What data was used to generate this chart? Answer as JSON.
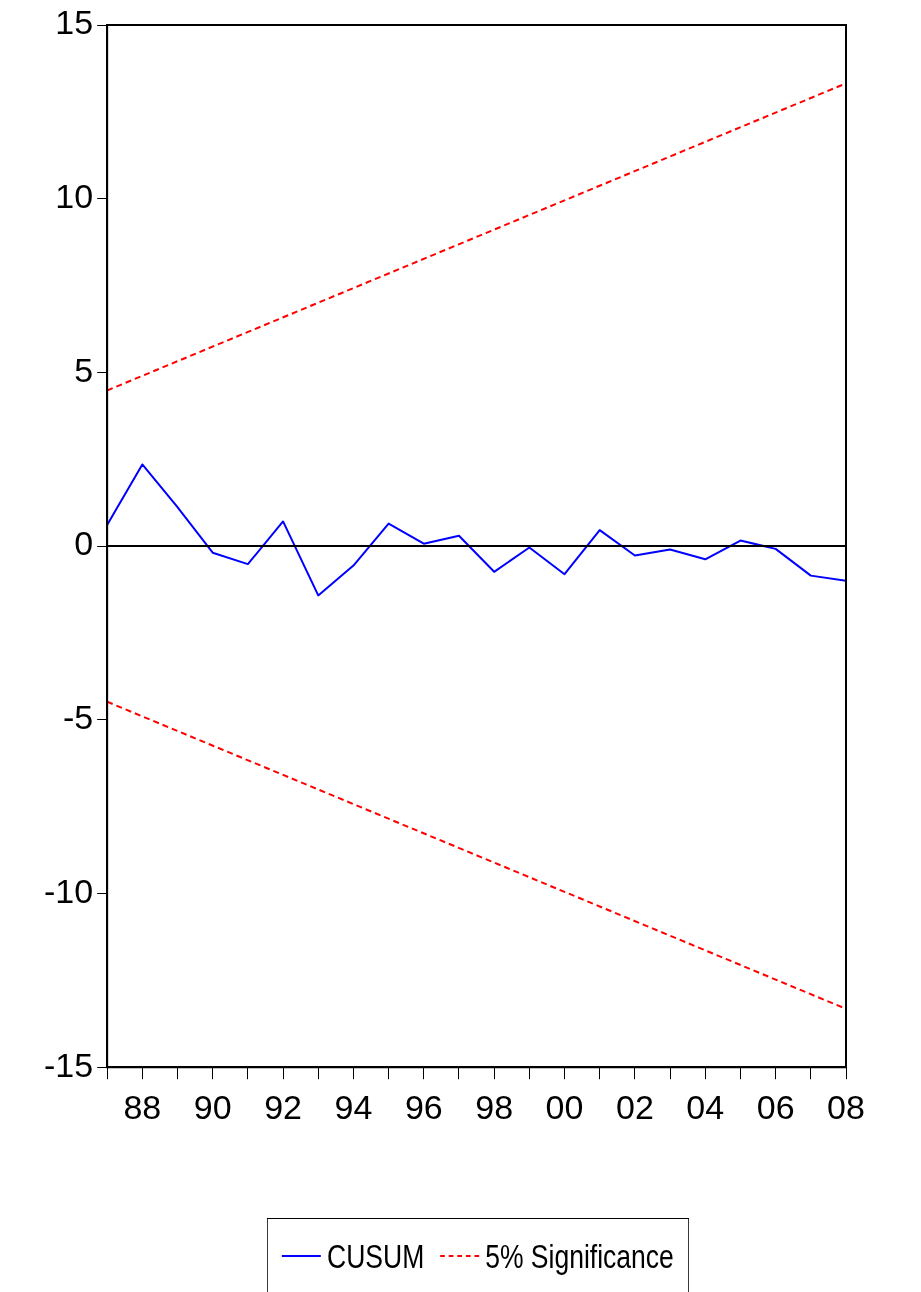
{
  "chart_data": {
    "type": "line",
    "x": [
      1987,
      1988,
      1989,
      1990,
      1991,
      1992,
      1993,
      1994,
      1995,
      1996,
      1997,
      1998,
      1999,
      2000,
      2001,
      2002,
      2003,
      2004,
      2005,
      2006,
      2007,
      2008
    ],
    "series": [
      {
        "name": "CUSUM",
        "color": "#0000ff",
        "line_style": "solid",
        "values": [
          0.61,
          2.35,
          1.12,
          -0.19,
          -0.52,
          0.71,
          -1.42,
          -0.56,
          0.65,
          0.07,
          0.3,
          -0.74,
          -0.04,
          -0.81,
          0.46,
          -0.27,
          -0.1,
          -0.38,
          0.16,
          -0.08,
          -0.85,
          -1.0
        ]
      },
      {
        "name": "5% Significance",
        "color": "#ff0000",
        "line_style": "dashed",
        "values": [
          4.48,
          null,
          null,
          null,
          null,
          null,
          null,
          null,
          null,
          null,
          null,
          null,
          null,
          null,
          null,
          null,
          null,
          null,
          null,
          null,
          null,
          13.32
        ]
      },
      {
        "color": "#ff0000",
        "line_style": "dashed",
        "values": [
          -4.48,
          null,
          null,
          null,
          null,
          null,
          null,
          null,
          null,
          null,
          null,
          null,
          null,
          null,
          null,
          null,
          null,
          null,
          null,
          null,
          null,
          -13.32
        ]
      }
    ],
    "xlim": [
      1987,
      2008
    ],
    "xticks": [
      {
        "value": 1987,
        "label": null
      },
      {
        "value": 1988,
        "label": "88"
      },
      {
        "value": 1989,
        "label": null
      },
      {
        "value": 1990,
        "label": "90"
      },
      {
        "value": 1991,
        "label": null
      },
      {
        "value": 1992,
        "label": "92"
      },
      {
        "value": 1993,
        "label": null
      },
      {
        "value": 1994,
        "label": "94"
      },
      {
        "value": 1995,
        "label": null
      },
      {
        "value": 1996,
        "label": "96"
      },
      {
        "value": 1997,
        "label": null
      },
      {
        "value": 1998,
        "label": "98"
      },
      {
        "value": 1999,
        "label": null
      },
      {
        "value": 2000,
        "label": "00"
      },
      {
        "value": 2001,
        "label": null
      },
      {
        "value": 2002,
        "label": "02"
      },
      {
        "value": 2003,
        "label": null
      },
      {
        "value": 2004,
        "label": "04"
      },
      {
        "value": 2005,
        "label": null
      },
      {
        "value": 2006,
        "label": "06"
      },
      {
        "value": 2007,
        "label": null
      },
      {
        "value": 2008,
        "label": "08"
      }
    ],
    "ylim": [
      -15,
      15
    ],
    "yticks": [
      -15,
      -10,
      -5,
      0,
      5,
      10,
      15
    ],
    "ref_lines": [
      {
        "axis": "y",
        "value": 0,
        "color": "#000000"
      }
    ],
    "grid": false,
    "legend": "bottom",
    "marker": "none"
  }
}
